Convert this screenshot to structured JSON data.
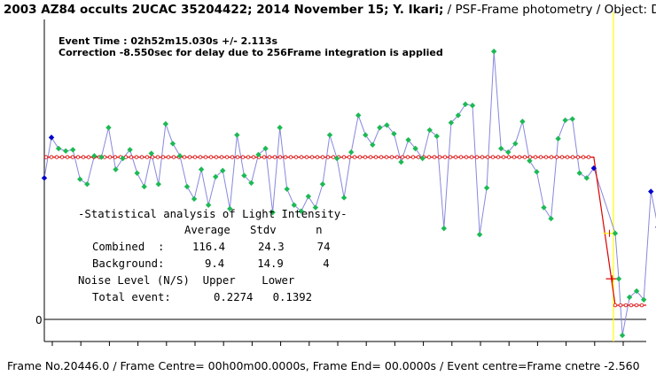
{
  "header": {
    "title_bold": "2003 AZ84 occults 2UCAC 35204422; 2014 November 15; Y. Ikari;",
    "title_rest": " / PSF-Frame photometry /  Object: D"
  },
  "footer": {
    "text": "Frame No.20446.0 / Frame Centre= 00h00m00.0000s,  Frame End= 00.0000s / Event centre=Frame cnetre -2.560"
  },
  "event": {
    "line1": "Event Time : 02h52m15.030s  +/- 2.113s",
    "line2": "Correction -8.550sec for delay due to 256Frame integration is applied"
  },
  "stats": {
    "title": "-Statistical analysis of Light Intensity-",
    "header_row": "Average   Stdv      n",
    "combined_label": "Combined  :",
    "combined_values": "116.4     24.3     74",
    "background_label": "Background:",
    "background_values": "9.4     14.9      4",
    "noise_row": "Noise Level (N/S)  Upper    Lower",
    "total_label": "Total event:",
    "total_values": "0.2274   0.1392"
  },
  "colors": {
    "primary_points": "#1db954",
    "secondary_points": "#0000cc",
    "connect_line": "#8888dd",
    "model_line": "#dd0000",
    "event_marker": "#ffff00",
    "axis": "#000000"
  },
  "chart_data": {
    "type": "scatter",
    "title": "",
    "xlabel": "",
    "ylabel": "",
    "ylim": [
      -18,
      244
    ],
    "zero_label": "0",
    "model": {
      "upper_level": 132,
      "lower_level": 11.5,
      "drop_start_index": 77,
      "drop_end_index": 80
    },
    "event_marker_index": 79.75,
    "error_bar": {
      "index": 79.2,
      "value": 70,
      "half_width": 0.9,
      "half_height": 0
    },
    "error_bar2": {
      "index": 79.6,
      "value": 33,
      "half_width": 0.9,
      "half_height": 0
    },
    "series": [
      {
        "name": "",
        "color_key": "secondary_points",
        "points": [
          {
            "x": 0,
            "y": 115
          },
          {
            "x": 1,
            "y": 148
          }
        ]
      },
      {
        "name": "",
        "color_key": "primary_points",
        "points": [
          {
            "x": 2,
            "y": 139
          },
          {
            "x": 3,
            "y": 137
          },
          {
            "x": 4,
            "y": 138
          },
          {
            "x": 5,
            "y": 114
          },
          {
            "x": 6,
            "y": 110
          },
          {
            "x": 7,
            "y": 133
          },
          {
            "x": 8,
            "y": 132
          },
          {
            "x": 9,
            "y": 156
          },
          {
            "x": 10,
            "y": 122
          },
          {
            "x": 11,
            "y": 131
          },
          {
            "x": 12,
            "y": 138
          },
          {
            "x": 13,
            "y": 119
          },
          {
            "x": 14,
            "y": 108
          },
          {
            "x": 15,
            "y": 135
          },
          {
            "x": 16,
            "y": 110
          },
          {
            "x": 17,
            "y": 159
          },
          {
            "x": 18,
            "y": 143
          },
          {
            "x": 19,
            "y": 133
          },
          {
            "x": 20,
            "y": 108
          },
          {
            "x": 21,
            "y": 98
          },
          {
            "x": 22,
            "y": 122
          },
          {
            "x": 23,
            "y": 93
          },
          {
            "x": 24,
            "y": 116
          },
          {
            "x": 25,
            "y": 121
          },
          {
            "x": 26,
            "y": 90
          },
          {
            "x": 27,
            "y": 150
          },
          {
            "x": 28,
            "y": 117
          },
          {
            "x": 29,
            "y": 111
          },
          {
            "x": 30,
            "y": 134
          },
          {
            "x": 31,
            "y": 139
          },
          {
            "x": 32,
            "y": 87
          },
          {
            "x": 33,
            "y": 156
          },
          {
            "x": 34,
            "y": 106
          },
          {
            "x": 35,
            "y": 93
          },
          {
            "x": 36,
            "y": 88
          },
          {
            "x": 37,
            "y": 100
          },
          {
            "x": 38,
            "y": 91
          },
          {
            "x": 39,
            "y": 110
          },
          {
            "x": 40,
            "y": 150
          },
          {
            "x": 41,
            "y": 131
          },
          {
            "x": 42,
            "y": 99
          },
          {
            "x": 43,
            "y": 136
          },
          {
            "x": 44,
            "y": 166
          },
          {
            "x": 45,
            "y": 150
          },
          {
            "x": 46,
            "y": 142
          },
          {
            "x": 47,
            "y": 156
          },
          {
            "x": 48,
            "y": 158
          },
          {
            "x": 49,
            "y": 151
          },
          {
            "x": 50,
            "y": 128
          },
          {
            "x": 51,
            "y": 146
          },
          {
            "x": 52,
            "y": 139
          },
          {
            "x": 53,
            "y": 131
          },
          {
            "x": 54,
            "y": 154
          },
          {
            "x": 55,
            "y": 149
          },
          {
            "x": 56,
            "y": 74
          },
          {
            "x": 57,
            "y": 160
          },
          {
            "x": 58,
            "y": 166
          },
          {
            "x": 59,
            "y": 175
          },
          {
            "x": 60,
            "y": 174
          },
          {
            "x": 61,
            "y": 69
          },
          {
            "x": 62,
            "y": 107
          },
          {
            "x": 63,
            "y": 218
          },
          {
            "x": 64,
            "y": 139
          },
          {
            "x": 65,
            "y": 136
          },
          {
            "x": 66,
            "y": 143
          },
          {
            "x": 67,
            "y": 161
          },
          {
            "x": 68,
            "y": 129
          },
          {
            "x": 69,
            "y": 120
          },
          {
            "x": 70,
            "y": 91
          },
          {
            "x": 71,
            "y": 82
          },
          {
            "x": 72,
            "y": 147
          },
          {
            "x": 73,
            "y": 162
          },
          {
            "x": 74,
            "y": 163
          },
          {
            "x": 75,
            "y": 119
          },
          {
            "x": 76,
            "y": 115
          },
          {
            "x": 80,
            "y": 70
          },
          {
            "x": 80.5,
            "y": 33
          },
          {
            "x": 81,
            "y": -13
          },
          {
            "x": 82,
            "y": 18
          },
          {
            "x": 83,
            "y": 23
          },
          {
            "x": 84,
            "y": 16
          }
        ]
      },
      {
        "name": "",
        "color_key": "secondary_points",
        "points": [
          {
            "x": 77,
            "y": 123
          },
          {
            "x": 85,
            "y": 104
          },
          {
            "x": 86,
            "y": 75
          },
          {
            "x": 87,
            "y": 83
          }
        ]
      }
    ],
    "connect_order": [
      [
        0,
        115
      ],
      [
        1,
        148
      ],
      [
        2,
        139
      ],
      [
        3,
        137
      ],
      [
        4,
        138
      ],
      [
        5,
        114
      ],
      [
        6,
        110
      ],
      [
        7,
        133
      ],
      [
        8,
        132
      ],
      [
        9,
        156
      ],
      [
        10,
        122
      ],
      [
        11,
        131
      ],
      [
        12,
        138
      ],
      [
        13,
        119
      ],
      [
        14,
        108
      ],
      [
        15,
        135
      ],
      [
        16,
        110
      ],
      [
        17,
        159
      ],
      [
        18,
        143
      ],
      [
        19,
        133
      ],
      [
        20,
        108
      ],
      [
        21,
        98
      ],
      [
        22,
        122
      ],
      [
        23,
        93
      ],
      [
        24,
        116
      ],
      [
        25,
        121
      ],
      [
        26,
        90
      ],
      [
        27,
        150
      ],
      [
        28,
        117
      ],
      [
        29,
        111
      ],
      [
        30,
        134
      ],
      [
        31,
        139
      ],
      [
        32,
        87
      ],
      [
        33,
        156
      ],
      [
        34,
        106
      ],
      [
        35,
        93
      ],
      [
        36,
        88
      ],
      [
        37,
        100
      ],
      [
        38,
        91
      ],
      [
        39,
        110
      ],
      [
        40,
        150
      ],
      [
        41,
        131
      ],
      [
        42,
        99
      ],
      [
        43,
        136
      ],
      [
        44,
        166
      ],
      [
        45,
        150
      ],
      [
        46,
        142
      ],
      [
        47,
        156
      ],
      [
        48,
        158
      ],
      [
        49,
        151
      ],
      [
        50,
        128
      ],
      [
        51,
        146
      ],
      [
        52,
        139
      ],
      [
        53,
        131
      ],
      [
        54,
        154
      ],
      [
        55,
        149
      ],
      [
        56,
        74
      ],
      [
        57,
        160
      ],
      [
        58,
        166
      ],
      [
        59,
        175
      ],
      [
        60,
        174
      ],
      [
        61,
        69
      ],
      [
        62,
        107
      ],
      [
        63,
        218
      ],
      [
        64,
        139
      ],
      [
        65,
        136
      ],
      [
        66,
        143
      ],
      [
        67,
        161
      ],
      [
        68,
        129
      ],
      [
        69,
        120
      ],
      [
        70,
        91
      ],
      [
        71,
        82
      ],
      [
        72,
        147
      ],
      [
        73,
        162
      ],
      [
        74,
        163
      ],
      [
        75,
        119
      ],
      [
        76,
        115
      ],
      [
        77,
        123
      ],
      [
        80,
        70
      ],
      [
        80.5,
        33
      ],
      [
        81,
        -13
      ],
      [
        82,
        18
      ],
      [
        83,
        23
      ],
      [
        84,
        16
      ],
      [
        85,
        104
      ],
      [
        86,
        75
      ],
      [
        87,
        83
      ]
    ]
  }
}
